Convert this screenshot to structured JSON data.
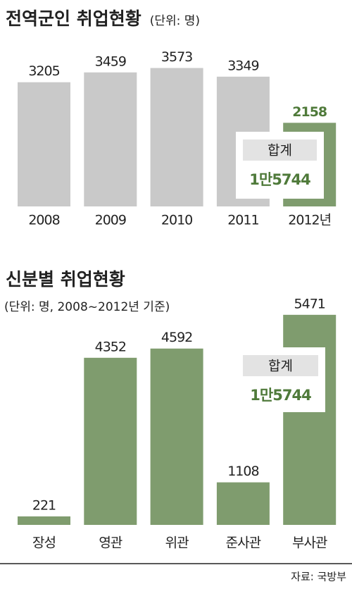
{
  "chart_data": [
    {
      "type": "bar",
      "title": "전역군인 취업현황",
      "subtitle": "(단위: 명)",
      "categories": [
        "2008",
        "2009",
        "2010",
        "2011",
        "2012년"
      ],
      "values": [
        3205,
        3459,
        3573,
        3349,
        2158
      ],
      "colors": [
        "#c9c9c9",
        "#c9c9c9",
        "#c9c9c9",
        "#c9c9c9",
        "#7f9c6e"
      ],
      "value_label_colors": [
        "#222222",
        "#222222",
        "#222222",
        "#222222",
        "#4f7a3a"
      ],
      "ylim": [
        0,
        4000
      ],
      "total_box": {
        "label": "합계",
        "text": "1만5744"
      }
    },
    {
      "type": "bar",
      "title": "신분별 취업현황",
      "subtitle": "(단위: 명, 2008~2012년 기준)",
      "categories": [
        "장성",
        "영관",
        "위관",
        "준사관",
        "부사관"
      ],
      "values": [
        221,
        4352,
        4592,
        1108,
        5471
      ],
      "colors": [
        "#7f9c6e",
        "#7f9c6e",
        "#7f9c6e",
        "#7f9c6e",
        "#7f9c6e"
      ],
      "value_label_colors": [
        "#222222",
        "#222222",
        "#222222",
        "#222222",
        "#222222"
      ],
      "ylim": [
        0,
        6000
      ],
      "total_box": {
        "label": "합계",
        "text": "1만5744"
      }
    }
  ],
  "source": "자료: 국방부"
}
